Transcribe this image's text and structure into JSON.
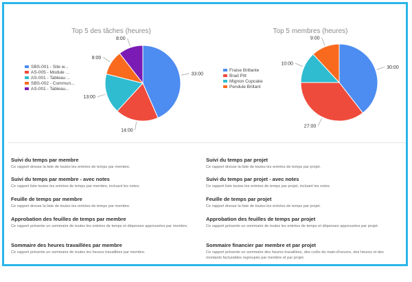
{
  "charts": [
    {
      "chart_data": {
        "type": "pie",
        "title": "Top 5 des tâches (heures)",
        "categories": [
          "SBS-001 - Site w...",
          "AS-005 - Module ...",
          "AS-001 - Tableau ...",
          "SBS-002 - Commun...",
          "AS-001 - Tableau..."
        ],
        "values": [
          33,
          14,
          13,
          8,
          8
        ],
        "value_labels": [
          "33:00",
          "14:00",
          "13:00",
          "8:00",
          "8:00"
        ],
        "colors": [
          "#4d8cf1",
          "#ef4b3c",
          "#2fbcd0",
          "#fa6a1e",
          "#7a1bb5"
        ],
        "legend": "left"
      }
    },
    {
      "chart_data": {
        "type": "pie",
        "title": "Top 5 membres (heures)",
        "categories": [
          "Fraise Brillante",
          "Brad Pitt",
          "Mignon Cupcake",
          "Pendule Brillant"
        ],
        "values": [
          30,
          27,
          10,
          9
        ],
        "value_labels": [
          "30:00",
          "27:00",
          "10:00",
          "9:00"
        ],
        "colors": [
          "#4d8cf1",
          "#ef4b3c",
          "#2fbcd0",
          "#fa6a1e"
        ],
        "legend": "left"
      }
    }
  ],
  "reports": {
    "left": [
      {
        "title": "Suivi du temps par membre",
        "desc": "Ce rapport dresse la liste de toutes les entrées de temps par membre."
      },
      {
        "title": "Suivi du temps par membre - avec notes",
        "desc": "Ce rapport liste toutes les entrées de temps par membre, incluant les notes."
      },
      {
        "title": "Feuille de temps par membre",
        "desc": "Ce rapport dresse la liste de toutes les entrées de temps par membre."
      },
      {
        "title": "Approbation des feuilles de temps par membre",
        "desc": "Ce rapport présente un sommaire de toutes les entrées de temps et dépenses approuvées par membre."
      },
      {
        "title": "Sommaire des heures travaillées par membre",
        "desc": "Ce rapport présente un sommaire de toutes les heures travaillées par membre."
      }
    ],
    "right": [
      {
        "title": "Suivi du temps par projet",
        "desc": "Ce rapport dresse la liste de toutes les entrées de temps par projet."
      },
      {
        "title": "Suivi du temps par projet - avec notes",
        "desc": "Ce rapport liste toutes les entrées de temps par projet, incluant les notes."
      },
      {
        "title": "Feuille de temps par projet",
        "desc": "Ce rapport dresse la liste de toutes les entrées de temps par projet."
      },
      {
        "title": "Approbation des feuilles de temps par projet",
        "desc": "Ce rapport présente un sommaire de toutes les entrées de temps et dépenses approuvées par projet."
      },
      {
        "title": "Sommaire financier par membre et par projet",
        "desc": "Ce rapport présente un sommaire des heures travaillées, des coûts de main-d'oeuvre, des heures et des montants facturables regroupés par membre et par projet."
      }
    ]
  }
}
